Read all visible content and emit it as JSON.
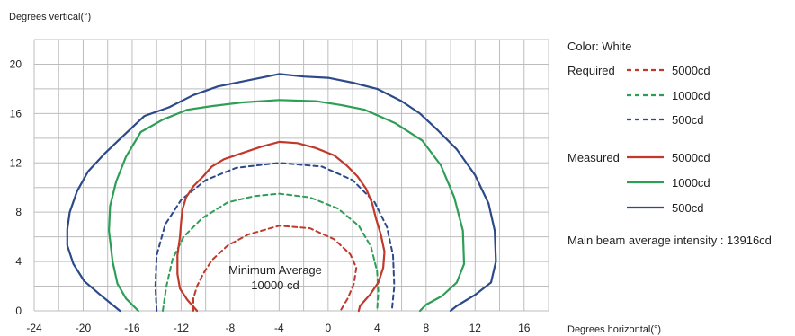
{
  "chart_data": {
    "type": "line",
    "title": "",
    "xlabel": "Degrees horizontal(°)",
    "ylabel": "Degrees vertical(°)",
    "xlim": [
      -24,
      18
    ],
    "ylim": [
      0,
      22
    ],
    "xticks": [
      -24,
      -20,
      -16,
      -12,
      -8,
      -4,
      0,
      4,
      8,
      12,
      16
    ],
    "yticks": [
      0,
      4,
      8,
      12,
      16,
      20
    ],
    "grid": true,
    "legend_position": "right",
    "color_label": "Color:  White",
    "required_label": "Required",
    "measured_label": "Measured",
    "main_beam_label": "Main beam average intensity : 13916cd",
    "annotation": [
      "Minimum Average",
      "10000 cd"
    ],
    "series": [
      {
        "name": "5000cd",
        "group": "Required",
        "style": "dashed",
        "color": "#c0392b",
        "points": [
          [
            -11,
            0
          ],
          [
            -11,
            1
          ],
          [
            -10.7,
            2
          ],
          [
            -10.2,
            3
          ],
          [
            -9.5,
            4.1
          ],
          [
            -8.2,
            5.3
          ],
          [
            -6.5,
            6.2
          ],
          [
            -4,
            6.9
          ],
          [
            -1.5,
            6.7
          ],
          [
            0.5,
            5.8
          ],
          [
            1.8,
            4.6
          ],
          [
            2.3,
            3.5
          ],
          [
            2.1,
            2.2
          ],
          [
            1.6,
            1
          ],
          [
            1,
            0
          ]
        ]
      },
      {
        "name": "1000cd",
        "group": "Required",
        "style": "dashed",
        "color": "#2e9e56",
        "points": [
          [
            -13.5,
            0
          ],
          [
            -13.2,
            2
          ],
          [
            -12.7,
            4.2
          ],
          [
            -11.8,
            6
          ],
          [
            -10.3,
            7.5
          ],
          [
            -8.2,
            8.8
          ],
          [
            -6,
            9.3
          ],
          [
            -4,
            9.5
          ],
          [
            -1.5,
            9.2
          ],
          [
            0.8,
            8.3
          ],
          [
            2.5,
            6.9
          ],
          [
            3.5,
            5.2
          ],
          [
            4,
            3.2
          ],
          [
            4.1,
            1.5
          ],
          [
            4,
            0
          ]
        ]
      },
      {
        "name": "500cd",
        "group": "Required",
        "style": "dashed",
        "color": "#2c4a8a",
        "points": [
          [
            -14,
            0
          ],
          [
            -14.1,
            2
          ],
          [
            -14,
            4.5
          ],
          [
            -13.3,
            7
          ],
          [
            -12,
            9
          ],
          [
            -10,
            10.6
          ],
          [
            -7.5,
            11.6
          ],
          [
            -4,
            12
          ],
          [
            -0.5,
            11.7
          ],
          [
            2,
            10.6
          ],
          [
            3.8,
            8.8
          ],
          [
            4.8,
            6.8
          ],
          [
            5.3,
            4.5
          ],
          [
            5.4,
            2
          ],
          [
            5.2,
            0
          ]
        ]
      },
      {
        "name": "5000cd",
        "group": "Measured",
        "style": "solid",
        "color": "#c0392b",
        "points": [
          [
            -10.7,
            0
          ],
          [
            -11.5,
            0.9
          ],
          [
            -12.1,
            1.8
          ],
          [
            -12.3,
            3
          ],
          [
            -12.3,
            4.5
          ],
          [
            -12.1,
            6
          ],
          [
            -12,
            7.2
          ],
          [
            -11.9,
            8.2
          ],
          [
            -11.6,
            9.2
          ],
          [
            -11,
            10.1
          ],
          [
            -10.2,
            10.9
          ],
          [
            -9.5,
            11.7
          ],
          [
            -8.5,
            12.3
          ],
          [
            -7,
            12.8
          ],
          [
            -5.5,
            13.3
          ],
          [
            -4,
            13.7
          ],
          [
            -2.5,
            13.6
          ],
          [
            -1,
            13.2
          ],
          [
            0.5,
            12.6
          ],
          [
            1.5,
            11.8
          ],
          [
            2.4,
            10.9
          ],
          [
            3.1,
            9.9
          ],
          [
            3.6,
            8.7
          ],
          [
            3.9,
            7.5
          ],
          [
            4.3,
            6.2
          ],
          [
            4.6,
            4.8
          ],
          [
            4.5,
            3.5
          ],
          [
            4.1,
            2.3
          ],
          [
            3.4,
            1.3
          ],
          [
            2.6,
            0.4
          ],
          [
            2.5,
            0
          ]
        ]
      },
      {
        "name": "1000cd",
        "group": "Measured",
        "style": "solid",
        "color": "#2e9e56",
        "points": [
          [
            -15.5,
            0
          ],
          [
            -16.5,
            1
          ],
          [
            -17.2,
            2.2
          ],
          [
            -17.6,
            4
          ],
          [
            -17.9,
            6.5
          ],
          [
            -17.8,
            8.5
          ],
          [
            -17.3,
            10.5
          ],
          [
            -16.5,
            12.5
          ],
          [
            -15.3,
            14.5
          ],
          [
            -13.5,
            15.5
          ],
          [
            -11.5,
            16.3
          ],
          [
            -9.5,
            16.6
          ],
          [
            -7,
            16.9
          ],
          [
            -4,
            17.1
          ],
          [
            -1,
            17
          ],
          [
            1,
            16.7
          ],
          [
            3,
            16.3
          ],
          [
            5.5,
            15.2
          ],
          [
            7.7,
            13.8
          ],
          [
            9.2,
            11.8
          ],
          [
            10.3,
            9.2
          ],
          [
            11,
            6.5
          ],
          [
            11.1,
            3.8
          ],
          [
            10.5,
            2.3
          ],
          [
            9.3,
            1.2
          ],
          [
            8,
            0.5
          ],
          [
            7.5,
            0
          ]
        ]
      },
      {
        "name": "500cd",
        "group": "Measured",
        "style": "solid",
        "color": "#2c4a8a",
        "points": [
          [
            -17,
            0
          ],
          [
            -18.6,
            1.3
          ],
          [
            -19.9,
            2.4
          ],
          [
            -20.8,
            3.8
          ],
          [
            -21.3,
            5.3
          ],
          [
            -21.3,
            6.6
          ],
          [
            -21.1,
            8
          ],
          [
            -20.5,
            9.7
          ],
          [
            -19.6,
            11.3
          ],
          [
            -18.2,
            12.8
          ],
          [
            -16.5,
            14.4
          ],
          [
            -15,
            15.8
          ],
          [
            -13,
            16.5
          ],
          [
            -11,
            17.5
          ],
          [
            -9,
            18.2
          ],
          [
            -7,
            18.6
          ],
          [
            -5,
            19
          ],
          [
            -4,
            19.2
          ],
          [
            -2,
            19
          ],
          [
            0,
            18.9
          ],
          [
            2,
            18.5
          ],
          [
            4,
            18
          ],
          [
            6,
            17
          ],
          [
            7.5,
            16
          ],
          [
            9,
            14.6
          ],
          [
            10.5,
            13.1
          ],
          [
            12,
            11
          ],
          [
            13.1,
            8.7
          ],
          [
            13.6,
            6.5
          ],
          [
            13.7,
            4
          ],
          [
            13.3,
            2.3
          ],
          [
            12,
            1.3
          ],
          [
            10.5,
            0.4
          ],
          [
            10,
            0
          ]
        ]
      }
    ]
  }
}
